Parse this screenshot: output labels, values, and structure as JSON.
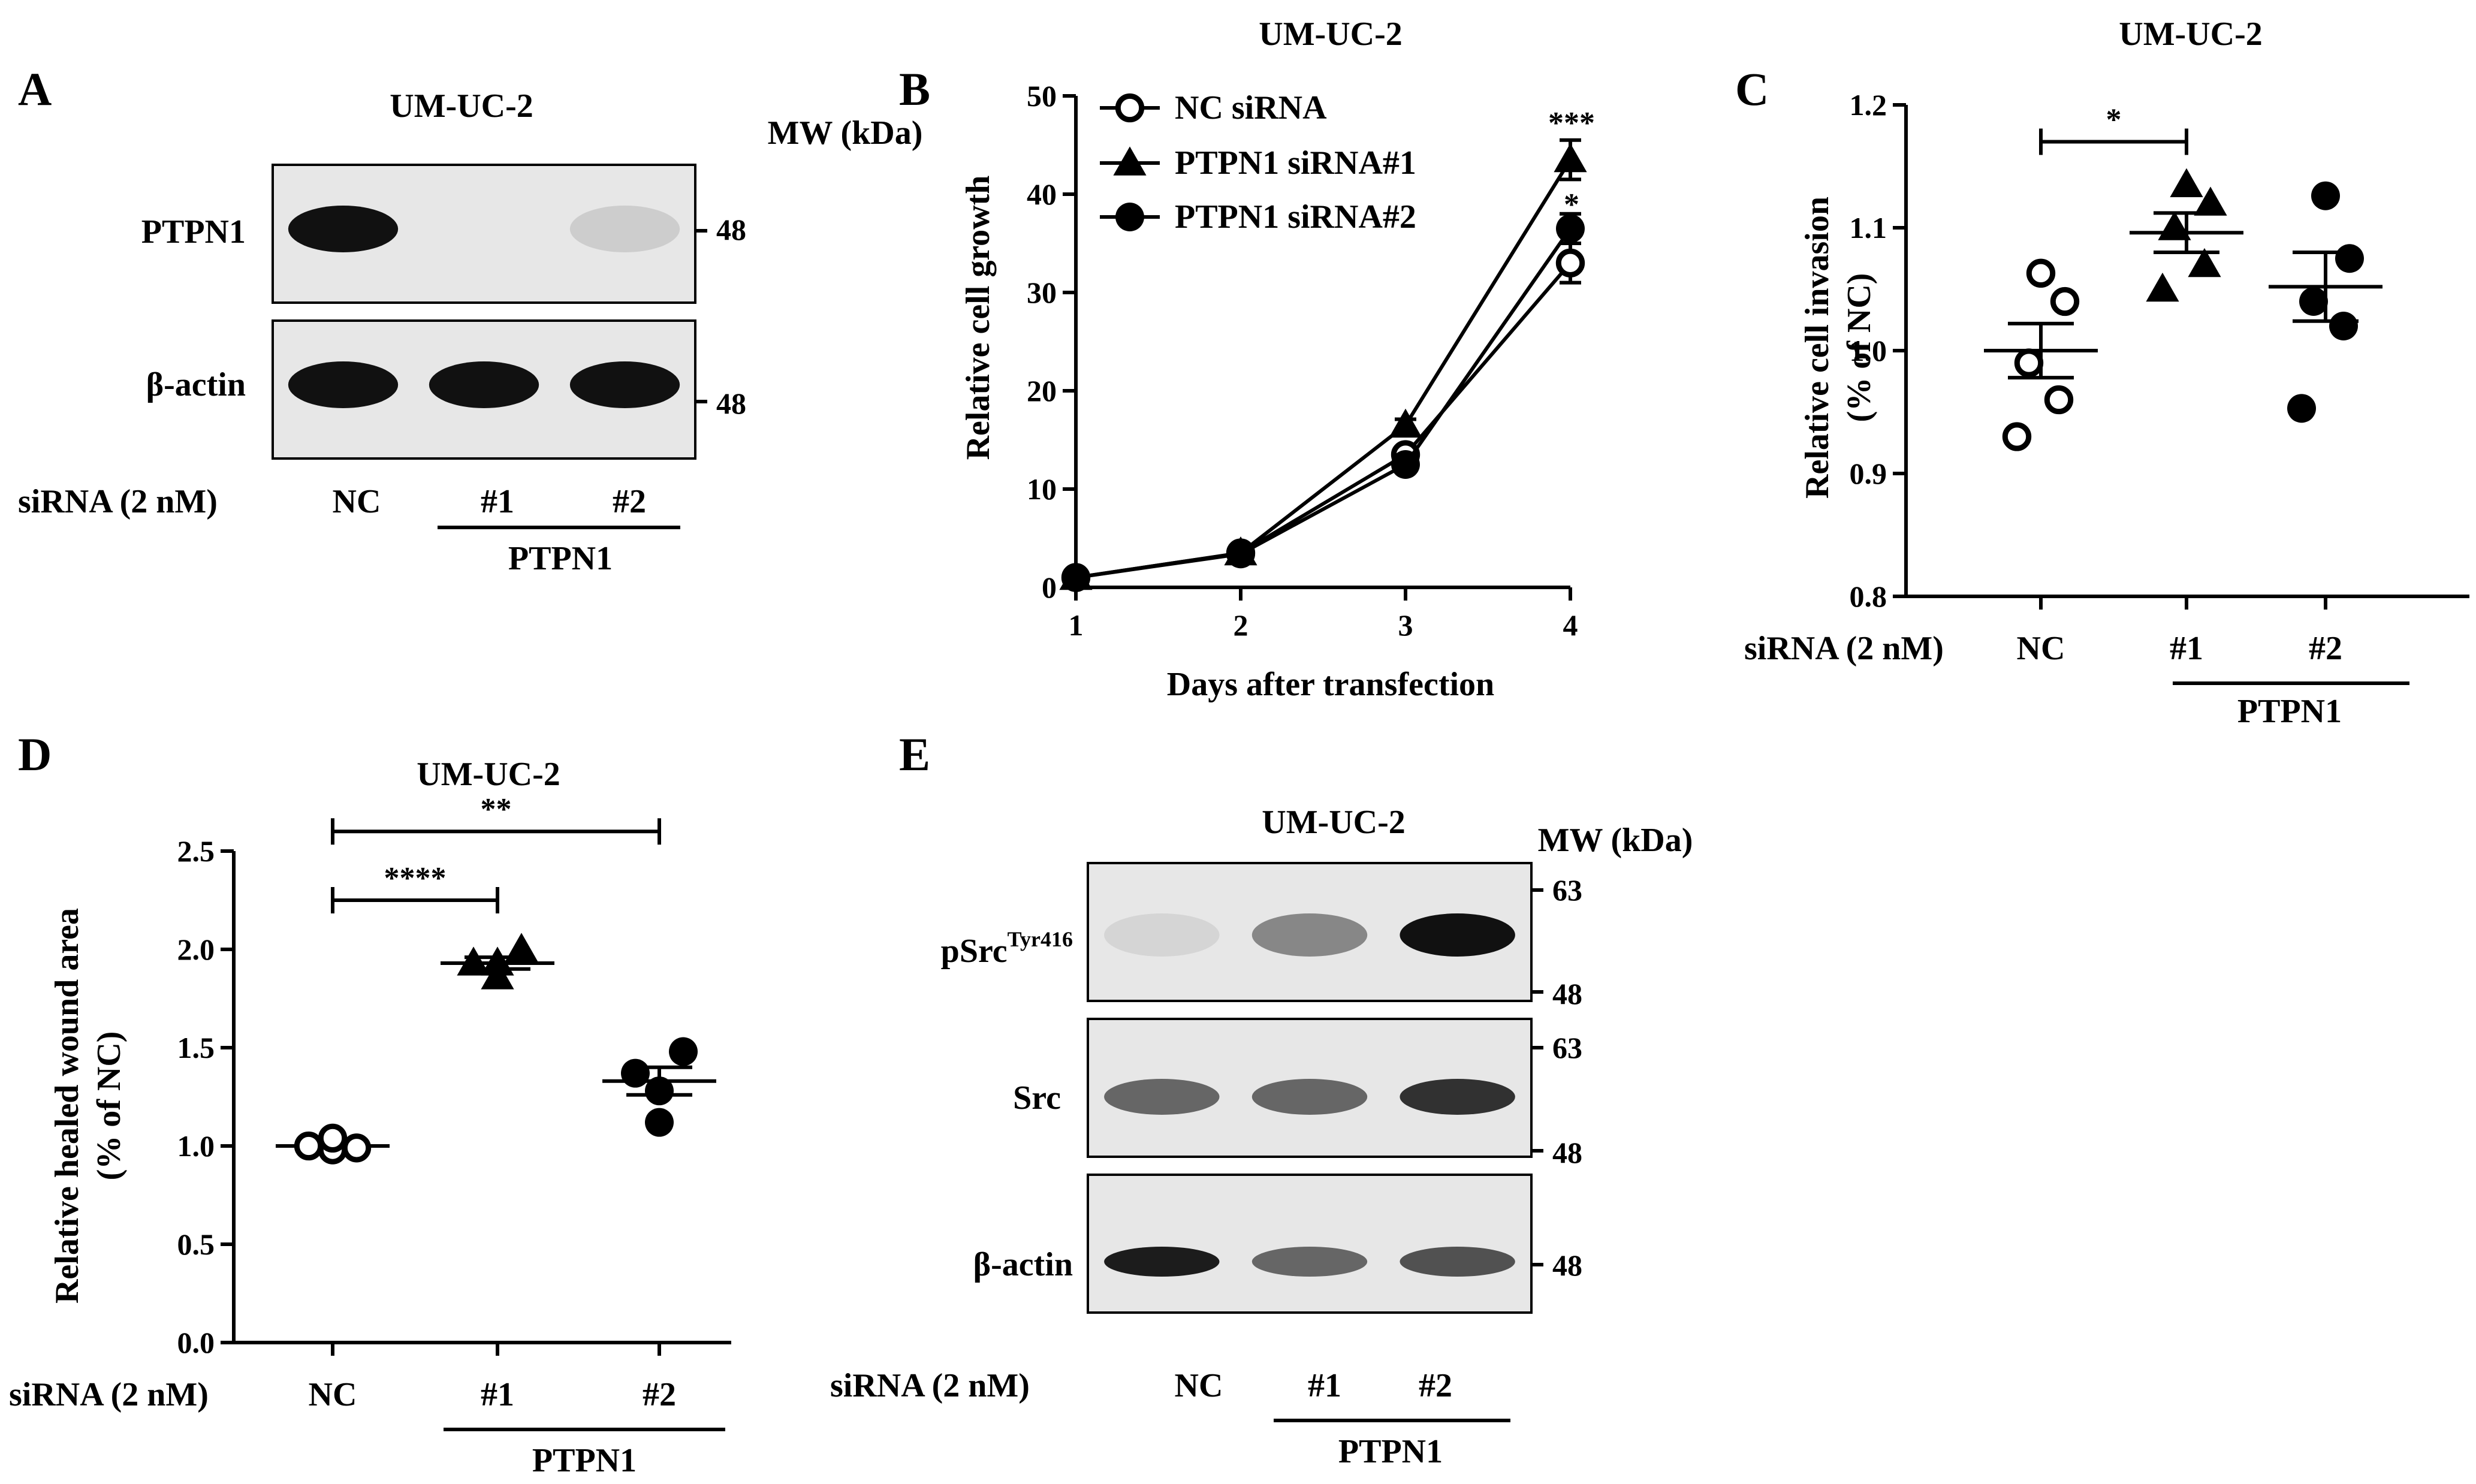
{
  "cell_line": "UM-UC-2",
  "panels": {
    "A": {
      "letter": "A",
      "title": "UM-UC-2",
      "mw_header": "MW (kDa)",
      "blots": [
        {
          "label": "PTPN1",
          "mw": "48",
          "bands": [
            1.0,
            0.0,
            0.12
          ]
        },
        {
          "label": "β-actin",
          "mw": "48",
          "bands": [
            1.0,
            1.0,
            1.0
          ]
        }
      ],
      "lane_header": "siRNA (2 nM)",
      "lanes": [
        "NC",
        "#1",
        "#2"
      ],
      "group_label": "PTPN1"
    },
    "B": {
      "letter": "B",
      "title": "UM-UC-2",
      "legend": [
        "NC siRNA",
        "PTPN1 siRNA#1",
        "PTPN1 siRNA#2"
      ],
      "significance": [
        "***",
        "*"
      ]
    },
    "C": {
      "letter": "C",
      "title": "UM-UC-2",
      "lane_header": "siRNA (2 nM)",
      "lanes": [
        "NC",
        "#1",
        "#2"
      ],
      "group_label": "PTPN1",
      "significance": [
        "*"
      ]
    },
    "D": {
      "letter": "D",
      "title": "UM-UC-2",
      "lane_header": "siRNA (2 nM)",
      "lanes": [
        "NC",
        "#1",
        "#2"
      ],
      "group_label": "PTPN1",
      "significance": [
        "****",
        "**"
      ]
    },
    "E": {
      "letter": "E",
      "title": "UM-UC-2",
      "mw_header": "MW (kDa)",
      "blots": [
        {
          "label_main": "pSrc",
          "label_sup": "Tyr416",
          "mw_top": "63",
          "mw_bottom": "48",
          "bands": [
            0.08,
            0.45,
            1.0
          ]
        },
        {
          "label_main": "Src",
          "label_sup": "",
          "mw_top": "63",
          "mw_bottom": "48",
          "bands": [
            0.6,
            0.6,
            0.85
          ]
        },
        {
          "label_main": "β-actin",
          "label_sup": "",
          "mw_top": "48",
          "mw_bottom": "",
          "bands": [
            0.95,
            0.6,
            0.7
          ]
        }
      ],
      "lane_header": "siRNA (2 nM)",
      "lanes": [
        "NC",
        "#1",
        "#2"
      ],
      "group_label": "PTPN1"
    }
  },
  "chart_data": [
    {
      "panel": "B",
      "type": "line",
      "title": "UM-UC-2",
      "xlabel": "Days after transfection",
      "ylabel": "Relative cell growth",
      "x": [
        1,
        2,
        3,
        4
      ],
      "xlim": [
        1,
        4
      ],
      "ylim": [
        0,
        50
      ],
      "xticks": [
        "1",
        "2",
        "3",
        "4"
      ],
      "yticks": [
        "0",
        "10",
        "20",
        "30",
        "40",
        "50"
      ],
      "legend_position": "top-left",
      "grid": false,
      "series": [
        {
          "name": "NC siRNA",
          "marker": "open-circle",
          "values": [
            1,
            3.5,
            13.5,
            33
          ],
          "errors": [
            0.2,
            0.4,
            0.8,
            2
          ]
        },
        {
          "name": "PTPN1 siRNA#1",
          "marker": "filled-triangle",
          "values": [
            1,
            3.5,
            16.5,
            43.5
          ],
          "errors": [
            0.2,
            0.4,
            0.6,
            2
          ]
        },
        {
          "name": "PTPN1 siRNA#2",
          "marker": "filled-circle",
          "values": [
            1,
            3.4,
            12.5,
            36.5
          ],
          "errors": [
            0.2,
            0.4,
            0.6,
            1.5
          ]
        }
      ]
    },
    {
      "panel": "C",
      "type": "scatter",
      "title": "UM-UC-2",
      "ylabel": "Relative cell invasion",
      "ylabel2": "(% of NC)",
      "categories": [
        "NC",
        "#1",
        "#2"
      ],
      "ylim": [
        0.8,
        1.2
      ],
      "yticks": [
        "0.8",
        "0.9",
        "1.0",
        "1.1",
        "1.2"
      ],
      "grid": false,
      "groups": [
        {
          "name": "NC",
          "marker": "open-circle",
          "points": [
            0.93,
            0.96,
            0.99,
            1.04,
            1.063
          ],
          "mean": 1.0,
          "sem": 0.022
        },
        {
          "name": "#1",
          "marker": "filled-triangle",
          "points": [
            1.05,
            1.07,
            1.1,
            1.12,
            1.135
          ],
          "mean": 1.096,
          "sem": 0.016
        },
        {
          "name": "#2",
          "marker": "filled-circle",
          "points": [
            0.953,
            1.02,
            1.04,
            1.075,
            1.126
          ],
          "mean": 1.052,
          "sem": 0.028
        }
      ],
      "brackets": [
        {
          "from": "NC",
          "to": "#1",
          "y": 1.17,
          "label": "*"
        }
      ]
    },
    {
      "panel": "D",
      "type": "scatter",
      "title": "UM-UC-2",
      "ylabel": "Relative healed wound area",
      "ylabel2": "(% of NC)",
      "categories": [
        "NC",
        "#1",
        "#2"
      ],
      "ylim": [
        0,
        2.5
      ],
      "yticks": [
        "0.0",
        "0.5",
        "1.0",
        "1.5",
        "2.0",
        "2.5"
      ],
      "grid": false,
      "groups": [
        {
          "name": "NC",
          "marker": "open-circle",
          "points": [
            1.0,
            0.98,
            0.99,
            1.04
          ],
          "mean": 1.0,
          "sem": 0.015
        },
        {
          "name": "#1",
          "marker": "filled-triangle",
          "points": [
            1.93,
            1.86,
            2.0,
            1.93
          ],
          "mean": 1.93,
          "sem": 0.03
        },
        {
          "name": "#2",
          "marker": "filled-circle",
          "points": [
            1.37,
            1.28,
            1.48,
            1.12
          ],
          "mean": 1.33,
          "sem": 0.07
        }
      ],
      "brackets": [
        {
          "from": "NC",
          "to": "#1",
          "y": 2.25,
          "label": "****"
        },
        {
          "from": "NC",
          "to": "#2",
          "y": 2.6,
          "label": "**"
        }
      ]
    }
  ]
}
